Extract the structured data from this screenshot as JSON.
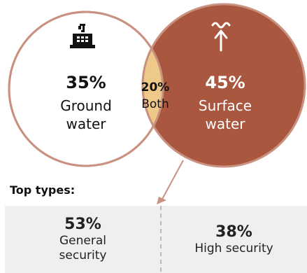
{
  "venn": {
    "ground": {
      "value": "35%",
      "line1": "Ground",
      "line2": "water"
    },
    "both": {
      "value": "20%",
      "label": "Both"
    },
    "surface": {
      "value": "45%",
      "line1": "Surface",
      "line2": "water"
    },
    "colors": {
      "ground_fill": "#ffffff",
      "ground_stroke": "#c9917f",
      "surface_fill": "#a9583f",
      "overlap_fill": "#efc98a",
      "text_dark": "#111111",
      "text_light": "#ffffff"
    },
    "icons": {
      "ground": "groundwater-tank-icon",
      "surface": "surface-water-icon"
    }
  },
  "top_types": {
    "title": "Top types:",
    "items": [
      {
        "value": "53%",
        "line1": "General",
        "line2": "security"
      },
      {
        "value": "38%",
        "line1": "High security"
      }
    ]
  }
}
